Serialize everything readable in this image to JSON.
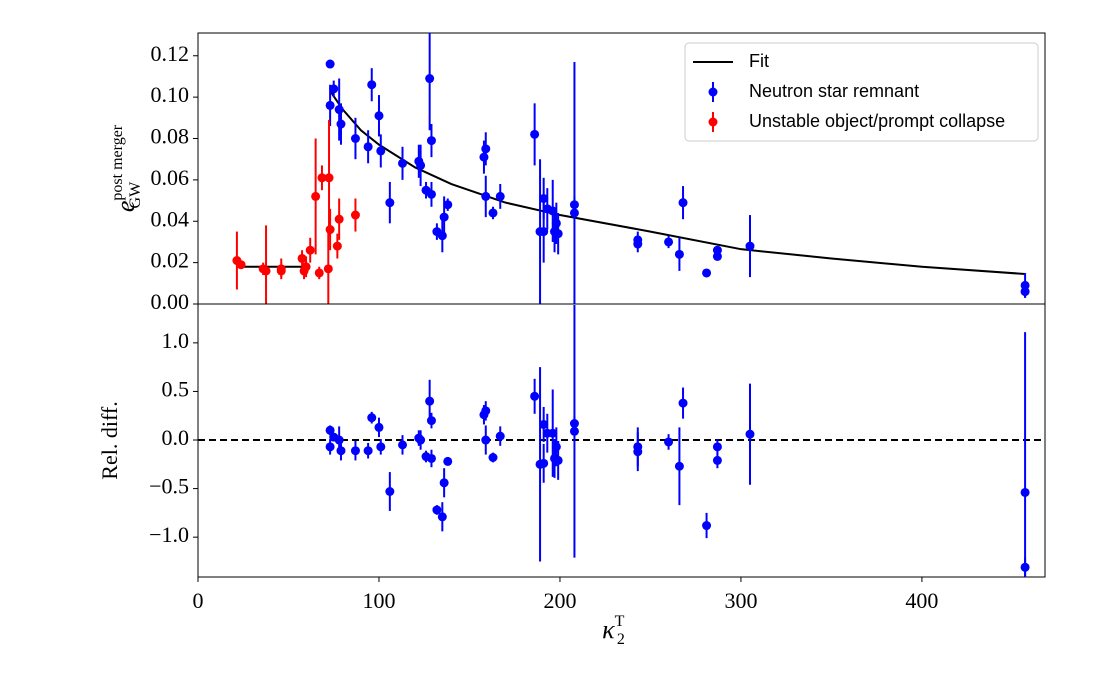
{
  "chart_data": [
    {
      "type": "errorbar",
      "ylabel": {
        "text": "e",
        "subscript": "GW",
        "superscript": "post merger"
      },
      "xlim": [
        0,
        468
      ],
      "ylim": [
        0,
        0.131
      ],
      "yticks": [
        {
          "value": 0,
          "label": "0.00"
        },
        {
          "value": 0.02,
          "label": "0.02"
        },
        {
          "value": 0.04,
          "label": "0.04"
        },
        {
          "value": 0.06,
          "label": "0.06"
        },
        {
          "value": 0.08,
          "label": "0.08"
        },
        {
          "value": 0.1,
          "label": "0.10"
        },
        {
          "value": 0.12,
          "label": "0.12"
        }
      ],
      "legend": true,
      "legend_loc": "upper right",
      "series": [
        {
          "name": "Fit",
          "type": "line",
          "color": "#000000",
          "x": [
            21.5,
            62,
            67,
            73,
            80,
            90,
            100,
            120,
            140,
            170,
            200,
            250,
            300,
            350,
            400,
            457
          ],
          "values": [
            0.018,
            0.018,
            null,
            0.103,
            0.094,
            0.084,
            0.077,
            0.066,
            0.058,
            0.049,
            0.043,
            0.035,
            0.0265,
            0.022,
            0.018,
            0.0145
          ]
        },
        {
          "name": "Neutron star remnant",
          "type": "errorbar",
          "color": "#0000ff",
          "x": [
            73,
            73,
            75,
            78,
            79,
            87,
            94,
            96,
            100,
            101,
            106,
            113,
            122,
            123,
            126,
            128,
            129,
            129,
            132,
            135,
            136,
            138,
            159,
            158,
            159,
            163,
            167,
            186,
            189,
            191,
            191,
            193,
            196,
            197,
            198,
            199,
            208,
            208,
            243,
            243,
            260,
            266,
            268,
            281,
            287,
            287,
            305,
            457,
            457
          ],
          "values": [
            0.116,
            0.096,
            0.104,
            0.094,
            0.087,
            0.08,
            0.076,
            0.106,
            0.091,
            0.074,
            0.049,
            0.068,
            0.069,
            0.067,
            0.055,
            0.109,
            0.079,
            0.053,
            0.035,
            0.033,
            0.042,
            0.048,
            0.075,
            0.071,
            0.052,
            0.044,
            0.052,
            0.082,
            0.035,
            0.051,
            0.035,
            0.046,
            0.045,
            0.035,
            0.039,
            0.034,
            0.048,
            0.044,
            0.031,
            0.029,
            0.03,
            0.024,
            0.049,
            0.015,
            0.026,
            0.023,
            0.028,
            0.009,
            0.006
          ],
          "errors": [
            0.002,
            0.01,
            0.004,
            0.015,
            0.01,
            0.01,
            0.008,
            0.008,
            0.01,
            0.008,
            0.01,
            0.008,
            0.008,
            0.01,
            0.004,
            0.025,
            0.008,
            0.006,
            0.004,
            0.008,
            0.01,
            0.003,
            0.008,
            0.008,
            0.01,
            0.003,
            0.006,
            0.015,
            0.035,
            0.01,
            0.015,
            0.01,
            0.015,
            0.01,
            0.01,
            0.01,
            0.004,
            0.073,
            0.004,
            0.004,
            0.003,
            0.008,
            0.008,
            0.001,
            0.002,
            0.002,
            0.015,
            0.006,
            0.003
          ]
        },
        {
          "name": "Unstable object/prompt collapse",
          "type": "errorbar",
          "color": "#ff0000",
          "x": [
            21.5,
            23.8,
            36,
            37.6,
            46,
            46,
            57.5,
            58.6,
            59.7,
            62,
            65,
            67,
            68.5,
            72,
            72.4,
            73,
            77,
            78,
            87
          ],
          "values": [
            0.021,
            0.019,
            0.017,
            0.016,
            0.016,
            0.017,
            0.022,
            0.016,
            0.018,
            0.026,
            0.052,
            0.015,
            0.061,
            0.017,
            0.061,
            0.036,
            0.028,
            0.041,
            0.043
          ],
          "errors": [
            0.014,
            0.002,
            0.003,
            0.022,
            0.003,
            0.005,
            0.004,
            0.004,
            0.005,
            0.006,
            0.028,
            0.003,
            0.006,
            0.02,
            0.028,
            0.01,
            0.006,
            0.01,
            0.008
          ]
        }
      ]
    },
    {
      "type": "errorbar",
      "ylabel": "Rel. diff.",
      "xlabel": {
        "text": "κ",
        "subscript": "2",
        "superscript": "T"
      },
      "xlim": [
        0,
        468
      ],
      "ylim": [
        -1.41,
        1.4
      ],
      "xticks": [
        0,
        100,
        200,
        300,
        400
      ],
      "yticks": [
        {
          "value": -1,
          "label": "−1.0"
        },
        {
          "value": -0.5,
          "label": "−0.5"
        },
        {
          "value": 0,
          "label": "0.0"
        },
        {
          "value": 0.5,
          "label": "0.5"
        },
        {
          "value": 1,
          "label": "1.0"
        }
      ],
      "hline": 0,
      "hline_style": "dashed",
      "series": [
        {
          "type": "errorbar",
          "color": "#0000ff",
          "x": [
            73,
            73,
            75,
            78,
            79,
            87,
            94,
            96,
            100,
            101,
            106,
            113,
            122,
            123,
            126,
            128,
            129,
            129,
            132,
            135,
            136,
            138,
            159,
            158,
            159,
            163,
            167,
            186,
            189,
            191,
            191,
            193,
            196,
            197,
            198,
            199,
            208,
            208,
            243,
            243,
            260,
            266,
            268,
            281,
            287,
            287,
            305,
            457,
            457
          ],
          "values": [
            0.1,
            -0.07,
            0.03,
            0.0,
            -0.11,
            -0.11,
            -0.11,
            0.23,
            0.13,
            -0.07,
            -0.53,
            -0.05,
            0.02,
            0.0,
            -0.17,
            0.4,
            0.2,
            -0.19,
            -0.72,
            -0.79,
            -0.44,
            -0.22,
            0.3,
            0.26,
            0.0,
            -0.18,
            0.04,
            0.45,
            -0.25,
            0.16,
            -0.24,
            0.07,
            0.07,
            -0.19,
            -0.07,
            -0.21,
            0.17,
            0.09,
            -0.07,
            -0.12,
            -0.02,
            -0.27,
            0.38,
            -0.88,
            -0.07,
            -0.21,
            0.06,
            -0.54,
            -1.31
          ],
          "errors": [
            0.05,
            0.08,
            0.04,
            0.14,
            0.1,
            0.1,
            0.08,
            0.06,
            0.1,
            0.08,
            0.2,
            0.1,
            0.08,
            0.1,
            0.06,
            0.22,
            0.08,
            0.09,
            0.05,
            0.15,
            0.15,
            0.04,
            0.1,
            0.1,
            0.15,
            0.05,
            0.1,
            0.18,
            1.0,
            0.18,
            0.2,
            0.2,
            0.45,
            0.2,
            0.2,
            0.2,
            0.08,
            1.3,
            0.2,
            0.2,
            0.08,
            0.4,
            0.16,
            0.13,
            0.08,
            0.08,
            0.52,
            1.65,
            0.1
          ]
        }
      ]
    }
  ]
}
